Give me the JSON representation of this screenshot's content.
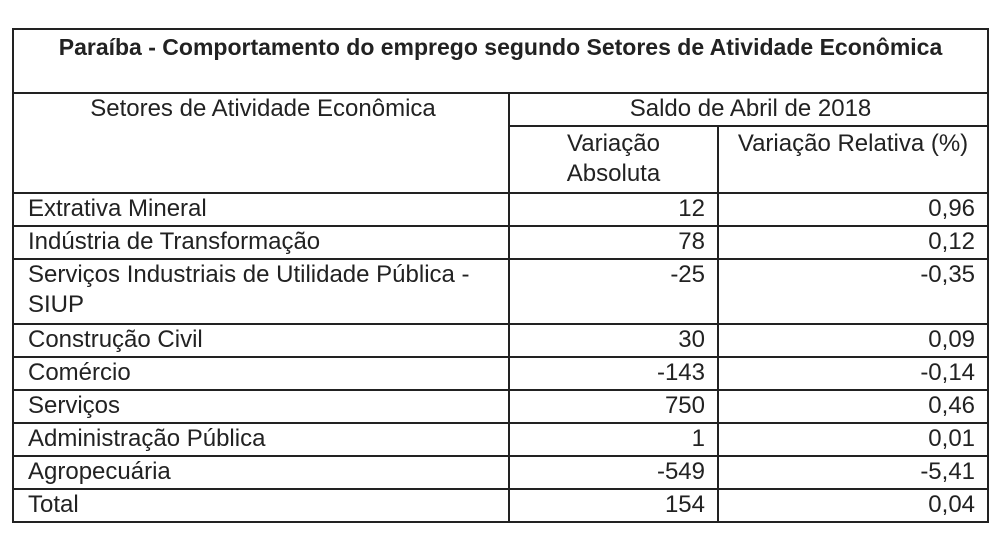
{
  "title": "Paraíba - Comportamento do emprego segundo Setores de Atividade Econômica",
  "headers": {
    "sector": "Setores de Atividade Econômica",
    "group": "Saldo de Abril de 2018",
    "absolute": "Variação Absoluta",
    "relative": "Variação Relativa (%)"
  },
  "rows": [
    {
      "sector": "Extrativa Mineral",
      "absolute": "12",
      "relative": "0,96"
    },
    {
      "sector": "Indústria de Transformação",
      "absolute": "78",
      "relative": "0,12"
    },
    {
      "sector": "Serviços Industriais de Utilidade Pública - SIUP",
      "absolute": "-25",
      "relative": "-0,35"
    },
    {
      "sector": "Construção Civil",
      "absolute": "30",
      "relative": "0,09"
    },
    {
      "sector": "Comércio",
      "absolute": "-143",
      "relative": "-0,14"
    },
    {
      "sector": "Serviços",
      "absolute": "750",
      "relative": "0,46"
    },
    {
      "sector": "Administração Pública",
      "absolute": "1",
      "relative": "0,01"
    },
    {
      "sector": "Agropecuária",
      "absolute": "-549",
      "relative": "-5,41"
    },
    {
      "sector": "Total",
      "absolute": "154",
      "relative": "0,04"
    }
  ]
}
